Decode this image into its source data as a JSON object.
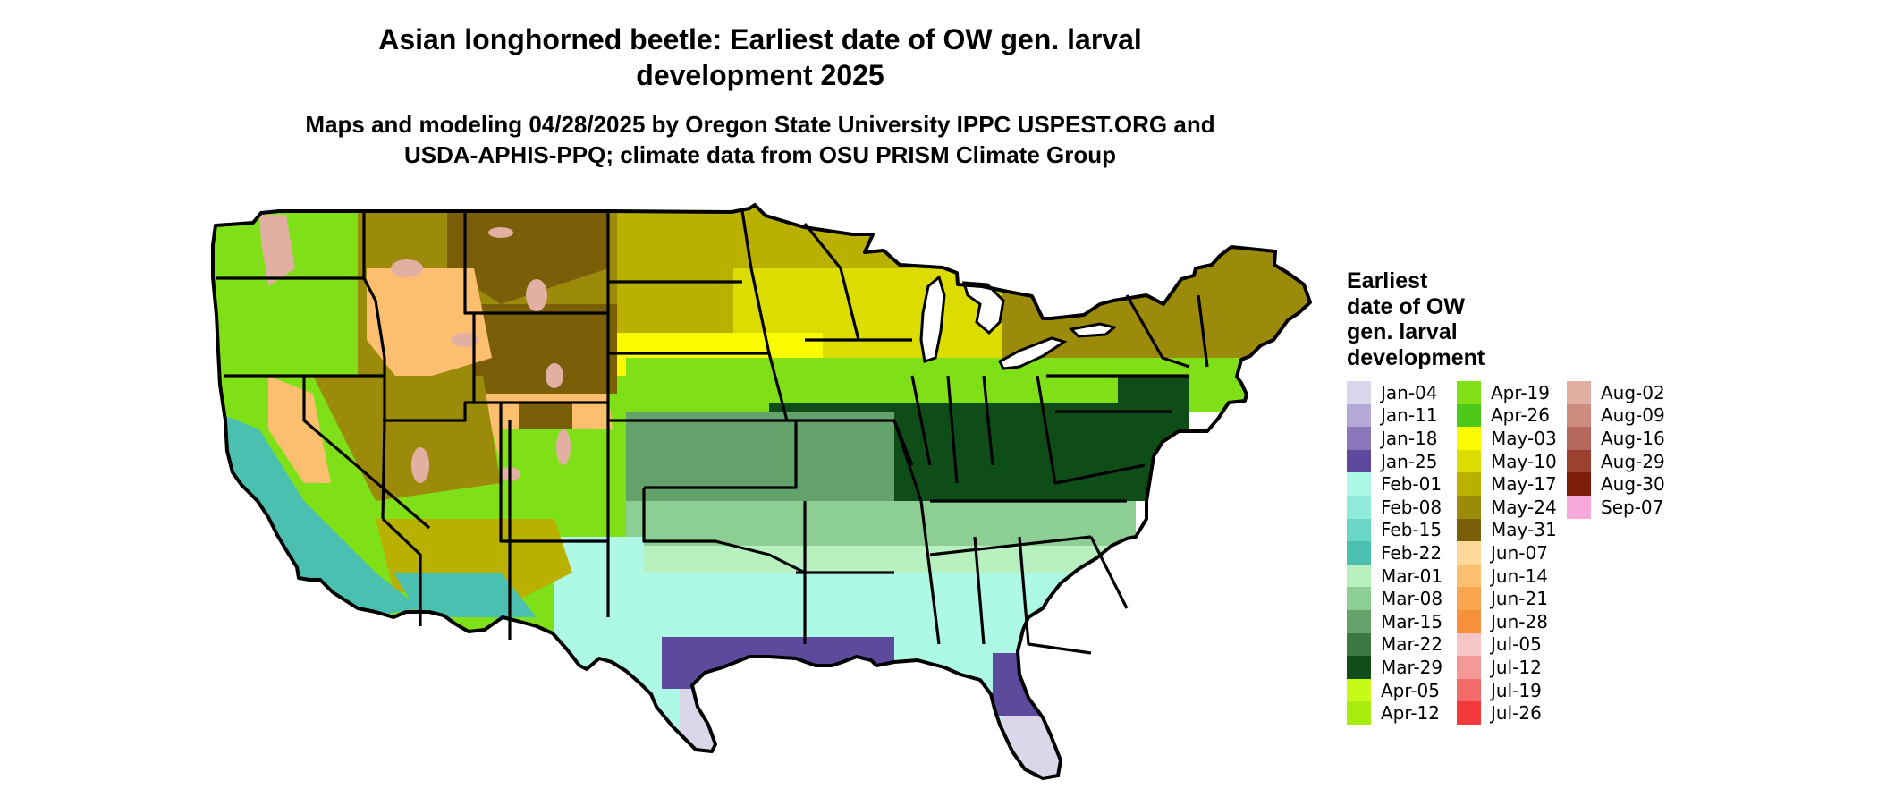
{
  "header": {
    "title_lines": [
      "Asian longhorned beetle: Earliest date of OW gen. larval",
      "development 2025"
    ],
    "subtitle_lines": [
      "Maps and modeling 04/28/2025 by Oregon State University IPPC USPEST.ORG and",
      "USDA-APHIS-PPQ; climate data from OSU PRISM Climate Group"
    ]
  },
  "legend": {
    "title_lines": [
      "Earliest",
      "date of OW",
      "gen. larval",
      "development"
    ],
    "columns": [
      [
        {
          "label": "Jan-04",
          "color": "#dcd6ea"
        },
        {
          "label": "Jan-11",
          "color": "#b4a8d4"
        },
        {
          "label": "Jan-18",
          "color": "#8a77bb"
        },
        {
          "label": "Jan-25",
          "color": "#5d4a9c"
        },
        {
          "label": "Feb-01",
          "color": "#aef8e6"
        },
        {
          "label": "Feb-08",
          "color": "#90ecd8"
        },
        {
          "label": "Feb-15",
          "color": "#6ad6c4"
        },
        {
          "label": "Feb-22",
          "color": "#4cc0b0"
        },
        {
          "label": "Mar-01",
          "color": "#b8f0c0"
        },
        {
          "label": "Mar-08",
          "color": "#8cce94"
        },
        {
          "label": "Mar-15",
          "color": "#63a26a"
        },
        {
          "label": "Mar-22",
          "color": "#3a7a42"
        },
        {
          "label": "Mar-29",
          "color": "#0f4d18"
        },
        {
          "label": "Apr-05",
          "color": "#c8fa18"
        },
        {
          "label": "Apr-12",
          "color": "#a8ec10"
        }
      ],
      [
        {
          "label": "Apr-19",
          "color": "#80e018"
        },
        {
          "label": "Apr-26",
          "color": "#4cc818"
        },
        {
          "label": "May-03",
          "color": "#fafa00"
        },
        {
          "label": "May-10",
          "color": "#dcdc00"
        },
        {
          "label": "May-17",
          "color": "#bab000"
        },
        {
          "label": "May-24",
          "color": "#9c8a0a"
        },
        {
          "label": "May-31",
          "color": "#7a5e08"
        },
        {
          "label": "Jun-07",
          "color": "#fed898"
        },
        {
          "label": "Jun-14",
          "color": "#fcbf70"
        },
        {
          "label": "Jun-21",
          "color": "#f9a64e"
        },
        {
          "label": "Jun-28",
          "color": "#f6903a"
        },
        {
          "label": "Jul-05",
          "color": "#f6c6c6"
        },
        {
          "label": "Jul-12",
          "color": "#f49898"
        },
        {
          "label": "Jul-19",
          "color": "#f26a6a"
        },
        {
          "label": "Jul-26",
          "color": "#f23838"
        }
      ],
      [
        {
          "label": "Aug-02",
          "color": "#e2b0a2"
        },
        {
          "label": "Aug-09",
          "color": "#cc8c7e"
        },
        {
          "label": "Aug-16",
          "color": "#b4685c"
        },
        {
          "label": "Aug-29",
          "color": "#9c4030"
        },
        {
          "label": "Aug-30",
          "color": "#7e1c0a"
        },
        {
          "label": "Sep-07",
          "color": "#f8aadc"
        }
      ]
    ]
  },
  "map": {
    "region": "Contiguous United States",
    "colors": {
      "nw_green": "#80e018",
      "mtn_brown": "#7a5e08",
      "mtn_olive": "#9c8a0a",
      "mtn_orange": "#fcbf70",
      "mtn_pink": "#e2b0a2",
      "coast_teal": "#4cc0b0",
      "sw_olive": "#bab000",
      "north_olive": "#bab000",
      "north_yellow": "#dcdc00",
      "neng_brown": "#9c8a0a",
      "band_green": "#80e018",
      "band_yellow": "#fafa00",
      "ohio_dark": "#0f4d18",
      "mid_green": "#63a26a",
      "light_green": "#8cce94",
      "pale_green": "#b8f0c0",
      "south_cyan": "#aef8e6",
      "gulf_purple": "#5d4a9c",
      "tip_lavender": "#dcd6ea",
      "lake_fill": "#ffffff",
      "border": "#000000"
    }
  }
}
